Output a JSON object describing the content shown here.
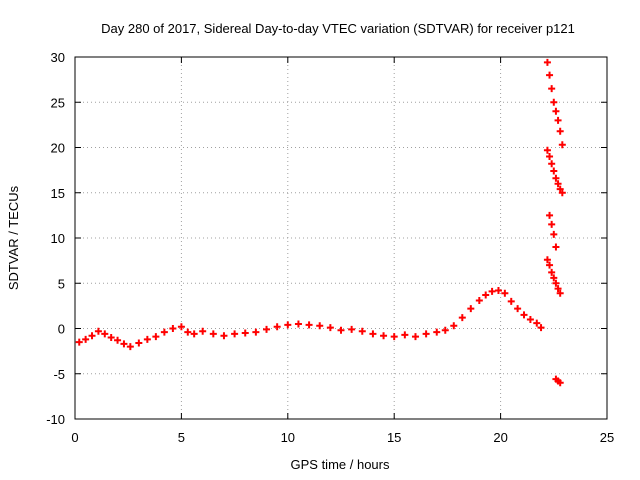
{
  "chart_data": {
    "type": "scatter",
    "title": "Day 280 of 2017, Sidereal Day-to-day VTEC variation (SDTVAR) for receiver p121",
    "xlabel": "GPS time / hours",
    "ylabel": "SDTVAR / TECUs",
    "xlim": [
      0,
      25
    ],
    "ylim": [
      -10,
      30
    ],
    "xticks": [
      0,
      5,
      10,
      15,
      20,
      25
    ],
    "yticks": [
      -10,
      -5,
      0,
      5,
      10,
      15,
      20,
      25,
      30
    ],
    "xtick_labels": [
      "0",
      "5",
      "10",
      "15",
      "20",
      "25"
    ],
    "ytick_labels": [
      "-10",
      "-5",
      "0",
      "5",
      "10",
      "15",
      "20",
      "25",
      "30"
    ],
    "grid": true,
    "marker": "+",
    "series": [
      {
        "name": "SDTVAR",
        "color": "#ff0000",
        "x": [
          0.2,
          0.5,
          0.8,
          1.1,
          1.4,
          1.7,
          2.0,
          2.3,
          2.6,
          3.0,
          3.4,
          3.8,
          4.2,
          4.6,
          5.0,
          5.3,
          5.6,
          6.0,
          6.5,
          7.0,
          7.5,
          8.0,
          8.5,
          9.0,
          9.5,
          10.0,
          10.5,
          11.0,
          11.5,
          12.0,
          12.5,
          13.0,
          13.5,
          14.0,
          14.5,
          15.0,
          15.5,
          16.0,
          16.5,
          17.0,
          17.4,
          17.8,
          18.2,
          18.6,
          19.0,
          19.3,
          19.6,
          19.9,
          20.2,
          20.5,
          20.8,
          21.1,
          21.4,
          21.7,
          21.9,
          22.2,
          22.3,
          22.4,
          22.5,
          22.6,
          22.7,
          22.8,
          22.9,
          22.2,
          22.3,
          22.4,
          22.5,
          22.6,
          22.7,
          22.8,
          22.9,
          22.3,
          22.4,
          22.5,
          22.6,
          22.2,
          22.3,
          22.4,
          22.5,
          22.6,
          22.7,
          22.8,
          22.6,
          22.7,
          22.8
        ],
        "y": [
          -1.5,
          -1.2,
          -0.8,
          -0.3,
          -0.6,
          -1.0,
          -1.3,
          -1.7,
          -2.0,
          -1.6,
          -1.2,
          -0.9,
          -0.4,
          0.0,
          0.2,
          -0.4,
          -0.6,
          -0.3,
          -0.6,
          -0.8,
          -0.6,
          -0.5,
          -0.4,
          -0.1,
          0.2,
          0.4,
          0.5,
          0.4,
          0.3,
          0.1,
          -0.2,
          -0.1,
          -0.3,
          -0.6,
          -0.8,
          -0.9,
          -0.7,
          -0.9,
          -0.6,
          -0.4,
          -0.2,
          0.3,
          1.2,
          2.2,
          3.1,
          3.7,
          4.1,
          4.2,
          3.9,
          3.0,
          2.2,
          1.5,
          1.0,
          0.6,
          0.1,
          29.4,
          28.0,
          26.5,
          25.0,
          24.0,
          23.0,
          21.8,
          20.3,
          19.7,
          19.0,
          18.2,
          17.4,
          16.6,
          16.0,
          15.4,
          15.0,
          12.5,
          11.5,
          10.4,
          9.0,
          7.6,
          7.0,
          6.2,
          5.6,
          5.0,
          4.4,
          3.9,
          -5.6,
          -5.8,
          -6.0
        ]
      }
    ]
  }
}
